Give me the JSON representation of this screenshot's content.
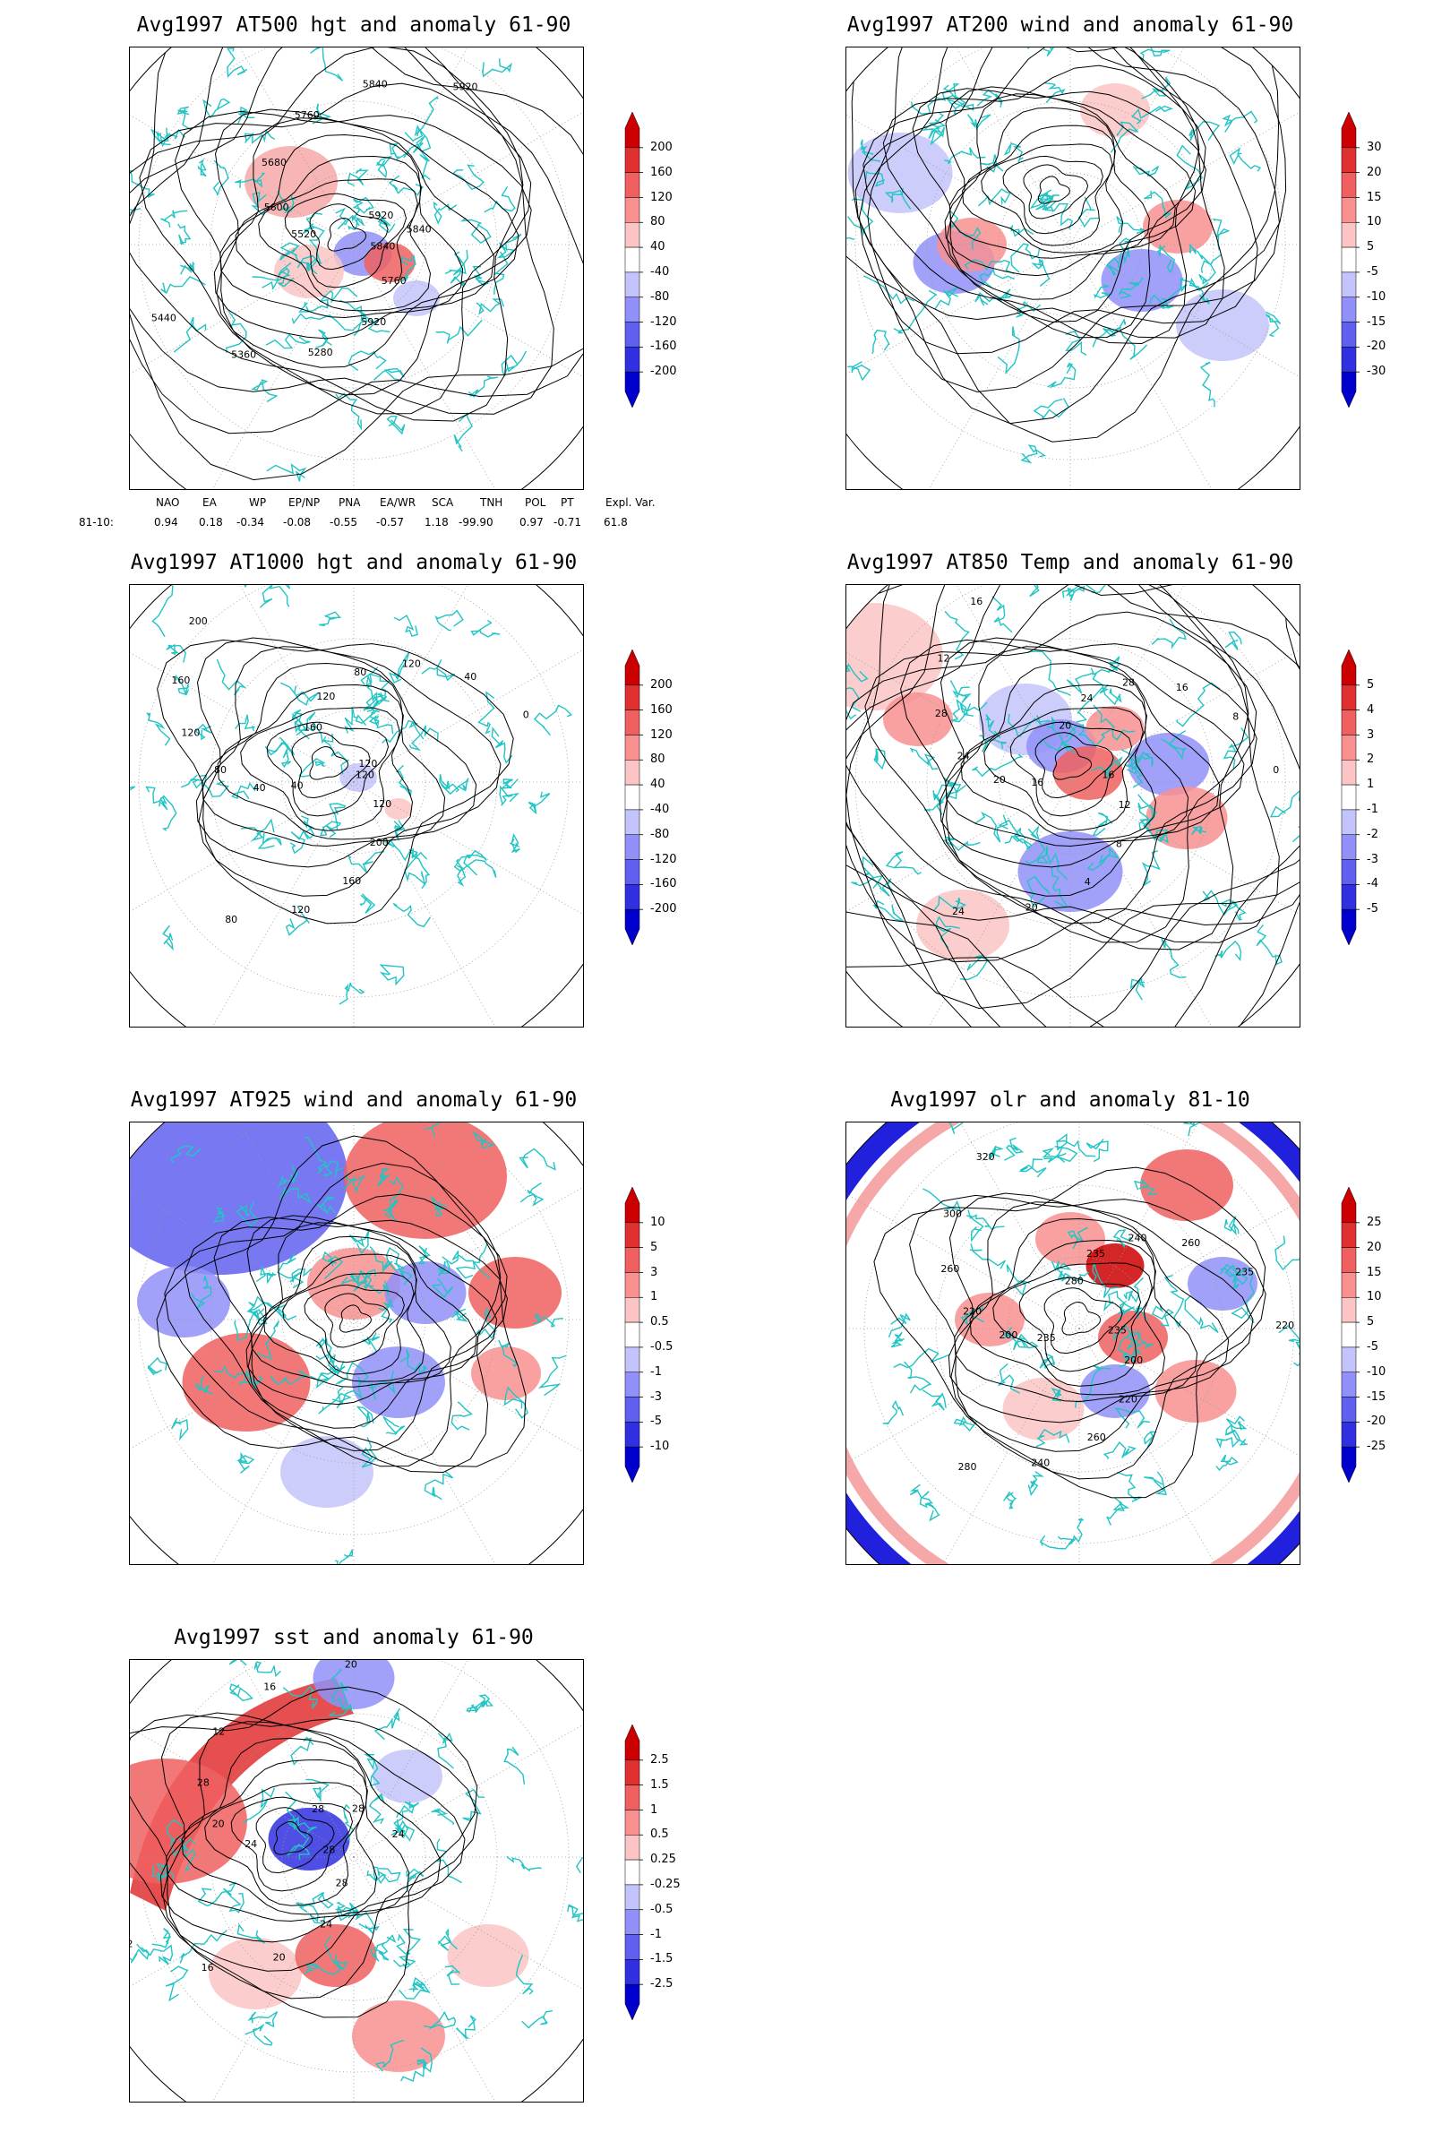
{
  "panels": [
    {
      "id": "at500",
      "title": "Avg1997 AT500 hgt and anomaly 61-90",
      "fields": "500 hPa geopotential height (contours) and anomaly vs 1961-1990 (shading)",
      "contour_labels": [
        "5840",
        "5760",
        "5920",
        "5280",
        "5360",
        "5440",
        "5520",
        "5600",
        "5680",
        "5760",
        "5840",
        "5920",
        "5920",
        "5840"
      ],
      "colorbar": {
        "labels": [
          "200",
          "160",
          "120",
          "80",
          "40",
          "-40",
          "-80",
          "-120",
          "-160",
          "-200"
        ],
        "colors": [
          "#cc0000",
          "#e03030",
          "#f06060",
          "#f89090",
          "#fcc4c4",
          "#ffffff",
          "#c4c4fc",
          "#9090f8",
          "#6060f0",
          "#3030e0",
          "#0000cc"
        ]
      }
    },
    {
      "id": "at200",
      "title": "Avg1997 AT200 wind and anomaly 61-90",
      "contour_labels": [],
      "colorbar": {
        "labels": [
          "30",
          "20",
          "15",
          "10",
          "5",
          "-5",
          "-10",
          "-15",
          "-20",
          "-30"
        ],
        "colors": [
          "#cc0000",
          "#e03030",
          "#f06060",
          "#f89090",
          "#fcc4c4",
          "#ffffff",
          "#c4c4fc",
          "#9090f8",
          "#6060f0",
          "#3030e0",
          "#0000cc"
        ]
      }
    },
    {
      "id": "at1000",
      "title": "Avg1997 AT1000 hgt and anomaly 61-90",
      "contour_labels": [
        "120",
        "120",
        "200",
        "160",
        "120",
        "80",
        "40",
        "40",
        "80",
        "120",
        "160",
        "200",
        "160",
        "120",
        "80",
        "120",
        "40",
        "0",
        "120"
      ],
      "colorbar": {
        "labels": [
          "200",
          "160",
          "120",
          "80",
          "40",
          "-40",
          "-80",
          "-120",
          "-160",
          "-200"
        ],
        "colors": [
          "#cc0000",
          "#e03030",
          "#f06060",
          "#f89090",
          "#fcc4c4",
          "#ffffff",
          "#c4c4fc",
          "#9090f8",
          "#6060f0",
          "#3030e0",
          "#0000cc"
        ]
      }
    },
    {
      "id": "at850",
      "title": "Avg1997 AT850 Temp and anomaly 61-90",
      "contour_labels": [
        "16",
        "12",
        "8",
        "4",
        "20",
        "24",
        "16",
        "20",
        "24",
        "28",
        "12",
        "16",
        "20",
        "24",
        "28",
        "16",
        "8",
        "0"
      ],
      "colorbar": {
        "labels": [
          "5",
          "4",
          "3",
          "2",
          "1",
          "-1",
          "-2",
          "-3",
          "-4",
          "-5"
        ],
        "colors": [
          "#cc0000",
          "#e03030",
          "#f06060",
          "#f89090",
          "#fcc4c4",
          "#ffffff",
          "#c4c4fc",
          "#9090f8",
          "#6060f0",
          "#3030e0",
          "#0000cc"
        ]
      }
    },
    {
      "id": "at925",
      "title": "Avg1997 AT925 wind and anomaly 61-90",
      "contour_labels": [],
      "colorbar": {
        "labels": [
          "10",
          "5",
          "3",
          "1",
          "0.5",
          "-0.5",
          "-1",
          "-3",
          "-5",
          "-10"
        ],
        "colors": [
          "#cc0000",
          "#e03030",
          "#f06060",
          "#f89090",
          "#fcc4c4",
          "#ffffff",
          "#c4c4fc",
          "#9090f8",
          "#6060f0",
          "#3030e0",
          "#0000cc"
        ]
      }
    },
    {
      "id": "olr",
      "title": "Avg1997 olr and anomaly 81-10",
      "contour_labels": [
        "235",
        "200",
        "220",
        "260",
        "240",
        "280",
        "235",
        "200",
        "220",
        "260",
        "300",
        "320",
        "280",
        "235",
        "240",
        "260",
        "235",
        "220"
      ],
      "colorbar": {
        "labels": [
          "25",
          "20",
          "15",
          "10",
          "5",
          "-5",
          "-10",
          "-15",
          "-20",
          "-25"
        ],
        "colors": [
          "#cc0000",
          "#e03030",
          "#f06060",
          "#f89090",
          "#fcc4c4",
          "#ffffff",
          "#c4c4fc",
          "#9090f8",
          "#6060f0",
          "#3030e0",
          "#0000cc"
        ]
      }
    },
    {
      "id": "sst",
      "title": "Avg1997 sst and anomaly 61-90",
      "contour_labels": [
        "28",
        "28",
        "24",
        "20",
        "16",
        "12",
        "24",
        "20",
        "28",
        "12",
        "16",
        "20",
        "28",
        "28",
        "24"
      ],
      "colorbar": {
        "labels": [
          "2.5",
          "1.5",
          "1",
          "0.5",
          "0.25",
          "-0.25",
          "-0.5",
          "-1",
          "-1.5",
          "-2.5"
        ],
        "colors": [
          "#cc0000",
          "#e03030",
          "#f06060",
          "#f89090",
          "#fcc4c4",
          "#ffffff",
          "#c4c4fc",
          "#9090f8",
          "#6060f0",
          "#3030e0",
          "#0000cc"
        ]
      }
    }
  ],
  "indices": {
    "row_label": "81-10:",
    "names": [
      "NAO",
      "EA",
      "WP",
      "EP/NP",
      "PNA",
      "EA/WR",
      "SCA",
      "TNH",
      "POL",
      "PT",
      "Expl. Var."
    ],
    "values": [
      "0.94",
      "0.18",
      "-0.34",
      "-0.08",
      "-0.55",
      "-0.57",
      "1.18",
      "-99.90",
      "0.97",
      "-0.71",
      "61.8"
    ]
  }
}
